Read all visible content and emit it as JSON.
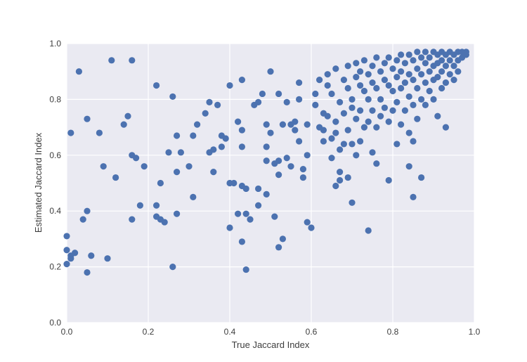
{
  "chart_data": {
    "type": "scatter",
    "title": "",
    "xlabel": "True Jaccard Index",
    "ylabel": "Estimated Jaccard Index",
    "xlim": [
      0.0,
      1.0
    ],
    "ylim": [
      0.0,
      1.0
    ],
    "xticks": [
      "0.0",
      "0.2",
      "0.4",
      "0.6",
      "0.8",
      "1.0"
    ],
    "yticks": [
      "0.0",
      "0.2",
      "0.4",
      "0.6",
      "0.8",
      "1.0"
    ],
    "grid": true,
    "legend": "none",
    "colors": {
      "background": "#EAEAF2",
      "grid": "#FFFFFF",
      "point": "#4C72B0"
    },
    "series": [
      {
        "points": [
          [
            0.0,
            0.31
          ],
          [
            0.0,
            0.26
          ],
          [
            0.0,
            0.21
          ],
          [
            0.01,
            0.23
          ],
          [
            0.01,
            0.24
          ],
          [
            0.02,
            0.25
          ],
          [
            0.01,
            0.68
          ],
          [
            0.03,
            0.9
          ],
          [
            0.05,
            0.73
          ],
          [
            0.05,
            0.4
          ],
          [
            0.04,
            0.37
          ],
          [
            0.05,
            0.18
          ],
          [
            0.06,
            0.24
          ],
          [
            0.08,
            0.68
          ],
          [
            0.09,
            0.56
          ],
          [
            0.1,
            0.23
          ],
          [
            0.11,
            0.94
          ],
          [
            0.12,
            0.52
          ],
          [
            0.14,
            0.71
          ],
          [
            0.15,
            0.74
          ],
          [
            0.16,
            0.94
          ],
          [
            0.16,
            0.6
          ],
          [
            0.16,
            0.37
          ],
          [
            0.17,
            0.59
          ],
          [
            0.18,
            0.42
          ],
          [
            0.19,
            0.56
          ],
          [
            0.22,
            0.85
          ],
          [
            0.22,
            0.42
          ],
          [
            0.22,
            0.38
          ],
          [
            0.23,
            0.5
          ],
          [
            0.23,
            0.37
          ],
          [
            0.24,
            0.36
          ],
          [
            0.25,
            0.61
          ],
          [
            0.26,
            0.81
          ],
          [
            0.26,
            0.2
          ],
          [
            0.27,
            0.67
          ],
          [
            0.27,
            0.54
          ],
          [
            0.27,
            0.39
          ],
          [
            0.28,
            0.61
          ],
          [
            0.3,
            0.56
          ],
          [
            0.31,
            0.67
          ],
          [
            0.31,
            0.45
          ],
          [
            0.32,
            0.71
          ],
          [
            0.34,
            0.75
          ],
          [
            0.35,
            0.61
          ],
          [
            0.35,
            0.79
          ],
          [
            0.36,
            0.62
          ],
          [
            0.36,
            0.54
          ],
          [
            0.37,
            0.78
          ],
          [
            0.38,
            0.67
          ],
          [
            0.38,
            0.63
          ],
          [
            0.39,
            0.66
          ],
          [
            0.4,
            0.85
          ],
          [
            0.4,
            0.5
          ],
          [
            0.4,
            0.34
          ],
          [
            0.41,
            0.5
          ],
          [
            0.42,
            0.72
          ],
          [
            0.42,
            0.39
          ],
          [
            0.43,
            0.87
          ],
          [
            0.43,
            0.69
          ],
          [
            0.43,
            0.63
          ],
          [
            0.43,
            0.49
          ],
          [
            0.44,
            0.48
          ],
          [
            0.43,
            0.29
          ],
          [
            0.44,
            0.39
          ],
          [
            0.44,
            0.19
          ],
          [
            0.45,
            0.37
          ],
          [
            0.46,
            0.78
          ],
          [
            0.47,
            0.79
          ],
          [
            0.47,
            0.48
          ],
          [
            0.47,
            0.42
          ],
          [
            0.48,
            0.82
          ],
          [
            0.49,
            0.71
          ],
          [
            0.49,
            0.63
          ],
          [
            0.49,
            0.58
          ],
          [
            0.49,
            0.46
          ],
          [
            0.5,
            0.9
          ],
          [
            0.5,
            0.68
          ],
          [
            0.51,
            0.57
          ],
          [
            0.51,
            0.38
          ],
          [
            0.52,
            0.82
          ],
          [
            0.52,
            0.58
          ],
          [
            0.52,
            0.53
          ],
          [
            0.52,
            0.27
          ],
          [
            0.53,
            0.71
          ],
          [
            0.53,
            0.3
          ],
          [
            0.54,
            0.79
          ],
          [
            0.54,
            0.59
          ],
          [
            0.55,
            0.71
          ],
          [
            0.55,
            0.56
          ],
          [
            0.56,
            0.72
          ],
          [
            0.56,
            0.69
          ],
          [
            0.57,
            0.86
          ],
          [
            0.57,
            0.8
          ],
          [
            0.57,
            0.65
          ],
          [
            0.58,
            0.55
          ],
          [
            0.58,
            0.52
          ],
          [
            0.59,
            0.71
          ],
          [
            0.59,
            0.6
          ],
          [
            0.59,
            0.36
          ],
          [
            0.6,
            0.34
          ],
          [
            0.61,
            0.82
          ],
          [
            0.61,
            0.78
          ],
          [
            0.62,
            0.87
          ],
          [
            0.62,
            0.7
          ],
          [
            0.63,
            0.75
          ],
          [
            0.63,
            0.69
          ],
          [
            0.63,
            0.65
          ],
          [
            0.64,
            0.89
          ],
          [
            0.64,
            0.85
          ],
          [
            0.64,
            0.74
          ],
          [
            0.65,
            0.82
          ],
          [
            0.65,
            0.66
          ],
          [
            0.65,
            0.59
          ],
          [
            0.66,
            0.91
          ],
          [
            0.66,
            0.72
          ],
          [
            0.66,
            0.68
          ],
          [
            0.66,
            0.49
          ],
          [
            0.67,
            0.79
          ],
          [
            0.67,
            0.62
          ],
          [
            0.67,
            0.54
          ],
          [
            0.67,
            0.51
          ],
          [
            0.68,
            0.87
          ],
          [
            0.68,
            0.75
          ],
          [
            0.68,
            0.64
          ],
          [
            0.69,
            0.92
          ],
          [
            0.69,
            0.84
          ],
          [
            0.69,
            0.69
          ],
          [
            0.69,
            0.52
          ],
          [
            0.7,
            0.8
          ],
          [
            0.7,
            0.77
          ],
          [
            0.7,
            0.64
          ],
          [
            0.7,
            0.43
          ],
          [
            0.71,
            0.93
          ],
          [
            0.71,
            0.88
          ],
          [
            0.71,
            0.73
          ],
          [
            0.71,
            0.6
          ],
          [
            0.72,
            0.9
          ],
          [
            0.72,
            0.85
          ],
          [
            0.72,
            0.76
          ],
          [
            0.72,
            0.65
          ],
          [
            0.73,
            0.94
          ],
          [
            0.73,
            0.83
          ],
          [
            0.73,
            0.7
          ],
          [
            0.74,
            0.89
          ],
          [
            0.74,
            0.8
          ],
          [
            0.74,
            0.72
          ],
          [
            0.74,
            0.33
          ],
          [
            0.75,
            0.92
          ],
          [
            0.75,
            0.86
          ],
          [
            0.75,
            0.76
          ],
          [
            0.75,
            0.61
          ],
          [
            0.76,
            0.95
          ],
          [
            0.76,
            0.84
          ],
          [
            0.76,
            0.7
          ],
          [
            0.76,
            0.57
          ],
          [
            0.77,
            0.9
          ],
          [
            0.77,
            0.8
          ],
          [
            0.77,
            0.74
          ],
          [
            0.78,
            0.93
          ],
          [
            0.78,
            0.87
          ],
          [
            0.78,
            0.77
          ],
          [
            0.79,
            0.95
          ],
          [
            0.79,
            0.85
          ],
          [
            0.79,
            0.72
          ],
          [
            0.79,
            0.51
          ],
          [
            0.8,
            0.91
          ],
          [
            0.8,
            0.83
          ],
          [
            0.8,
            0.76
          ],
          [
            0.81,
            0.94
          ],
          [
            0.81,
            0.88
          ],
          [
            0.81,
            0.79
          ],
          [
            0.81,
            0.64
          ],
          [
            0.82,
            0.96
          ],
          [
            0.82,
            0.9
          ],
          [
            0.82,
            0.84
          ],
          [
            0.82,
            0.71
          ],
          [
            0.83,
            0.93
          ],
          [
            0.83,
            0.86
          ],
          [
            0.83,
            0.76
          ],
          [
            0.84,
            0.96
          ],
          [
            0.84,
            0.89
          ],
          [
            0.84,
            0.81
          ],
          [
            0.84,
            0.68
          ],
          [
            0.84,
            0.56
          ],
          [
            0.85,
            0.94
          ],
          [
            0.85,
            0.87
          ],
          [
            0.85,
            0.78
          ],
          [
            0.85,
            0.65
          ],
          [
            0.85,
            0.45
          ],
          [
            0.86,
            0.97
          ],
          [
            0.86,
            0.91
          ],
          [
            0.86,
            0.84
          ],
          [
            0.86,
            0.73
          ],
          [
            0.87,
            0.95
          ],
          [
            0.87,
            0.89
          ],
          [
            0.87,
            0.8
          ],
          [
            0.87,
            0.52
          ],
          [
            0.88,
            0.97
          ],
          [
            0.88,
            0.93
          ],
          [
            0.88,
            0.86
          ],
          [
            0.88,
            0.78
          ],
          [
            0.89,
            0.95
          ],
          [
            0.89,
            0.9
          ],
          [
            0.89,
            0.83
          ],
          [
            0.9,
            0.97
          ],
          [
            0.9,
            0.92
          ],
          [
            0.9,
            0.87
          ],
          [
            0.9,
            0.8
          ],
          [
            0.91,
            0.96
          ],
          [
            0.91,
            0.93
          ],
          [
            0.91,
            0.88
          ],
          [
            0.91,
            0.74
          ],
          [
            0.92,
            0.97
          ],
          [
            0.92,
            0.94
          ],
          [
            0.92,
            0.9
          ],
          [
            0.92,
            0.84
          ],
          [
            0.93,
            0.96
          ],
          [
            0.93,
            0.92
          ],
          [
            0.93,
            0.86
          ],
          [
            0.93,
            0.7
          ],
          [
            0.94,
            0.97
          ],
          [
            0.94,
            0.94
          ],
          [
            0.94,
            0.89
          ],
          [
            0.95,
            0.96
          ],
          [
            0.95,
            0.92
          ],
          [
            0.95,
            0.87
          ],
          [
            0.96,
            0.97
          ],
          [
            0.96,
            0.94
          ],
          [
            0.96,
            0.9
          ],
          [
            0.97,
            0.97
          ],
          [
            0.97,
            0.95
          ],
          [
            0.98,
            0.97
          ],
          [
            0.98,
            0.96
          ]
        ]
      }
    ]
  }
}
